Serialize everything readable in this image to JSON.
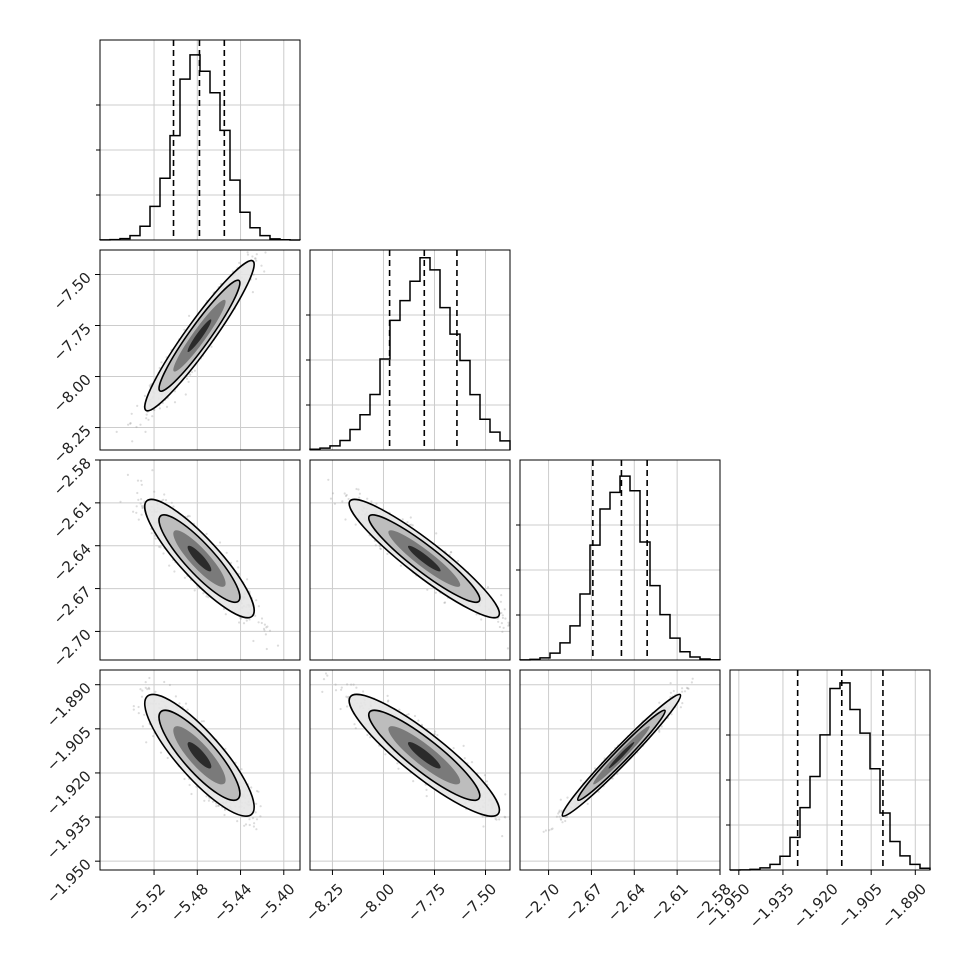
{
  "chart_data": {
    "type": "corner",
    "parameters": [
      {
        "ticks": [
          -5.52,
          -5.48,
          -5.44,
          -5.4
        ],
        "tick_labels": [
          "−5.52",
          "−5.48",
          "−5.44",
          "−5.40"
        ],
        "range": [
          -5.57,
          -5.385
        ],
        "quantiles": [
          -5.502,
          -5.478,
          -5.455
        ],
        "mean": -5.478,
        "sd": 0.022
      },
      {
        "ticks": [
          -8.25,
          -8.0,
          -7.75,
          -7.5
        ],
        "tick_labels": [
          "−8.25",
          "−8.00",
          "−7.75",
          "−7.50"
        ],
        "range": [
          -8.36,
          -7.38
        ],
        "quantiles": [
          -7.97,
          -7.8,
          -7.64
        ],
        "mean": -7.8,
        "sd": 0.16
      },
      {
        "ticks": [
          -2.7,
          -2.67,
          -2.64,
          -2.61,
          -2.58
        ],
        "tick_labels": [
          "−2.70",
          "−2.67",
          "−2.64",
          "−2.61",
          "−2.58"
        ],
        "range": [
          -2.72,
          -2.58
        ],
        "quantiles": [
          -2.669,
          -2.649,
          -2.631
        ],
        "mean": -2.649,
        "sd": 0.018
      },
      {
        "ticks": [
          -1.95,
          -1.935,
          -1.92,
          -1.905,
          -1.89
        ],
        "tick_labels": [
          "−1.950",
          "−1.935",
          "−1.920",
          "−1.905",
          "−1.890"
        ],
        "range": [
          -1.953,
          -1.885
        ],
        "quantiles": [
          -1.93,
          -1.915,
          -1.901
        ],
        "mean": -1.914,
        "sd": 0.009
      }
    ],
    "correlations": [
      [
        1.0,
        0.95,
        -0.88,
        -0.85
      ],
      [
        0.95,
        1.0,
        -0.93,
        -0.9
      ],
      [
        -0.88,
        -0.93,
        1.0,
        0.98
      ],
      [
        -0.85,
        -0.9,
        0.98,
        1.0
      ]
    ],
    "grid": true
  }
}
